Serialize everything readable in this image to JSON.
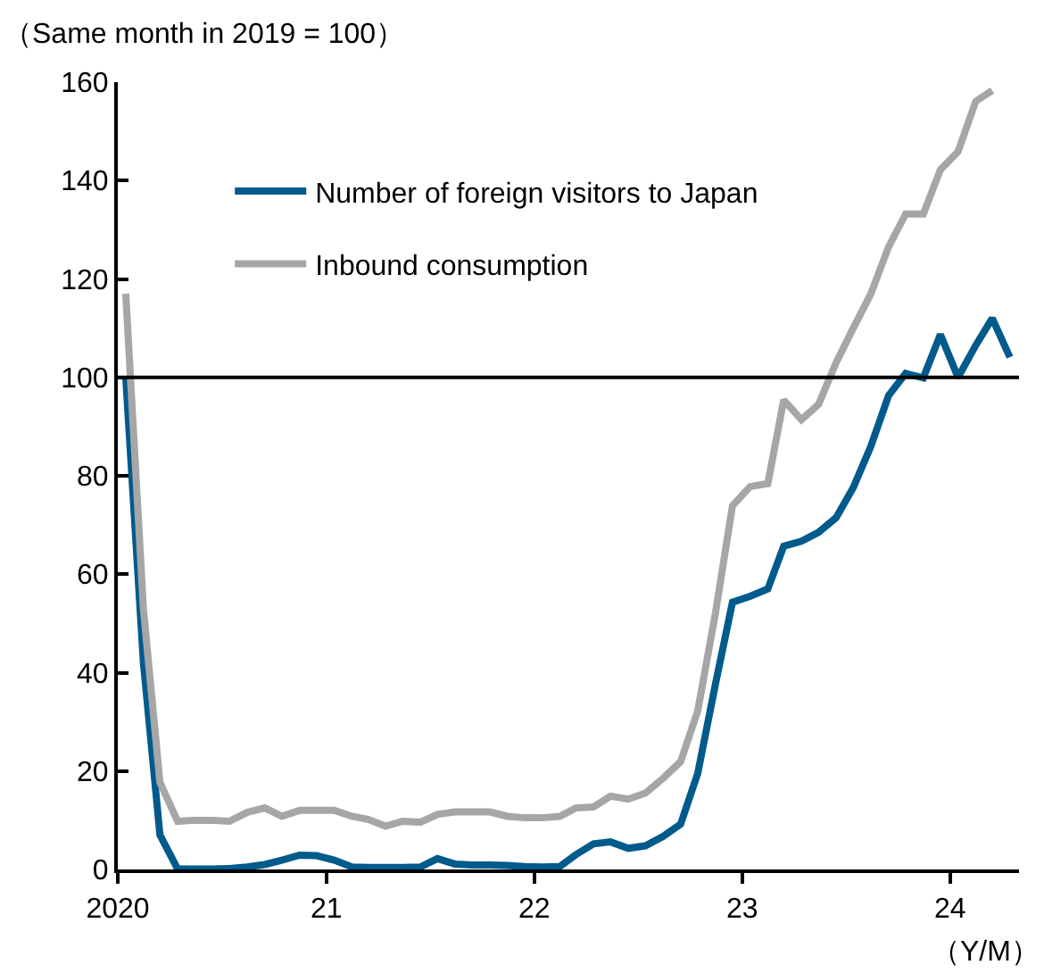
{
  "chart_data": {
    "type": "line",
    "xlabel": "（Y/M）",
    "ylabel": "（Same month in 2019 = 100）",
    "x": [
      "2020-01-15",
      "2020-02-15",
      "2020-03-15",
      "2020-04-15",
      "2020-05-15",
      "2020-06-15",
      "2020-07-15",
      "2020-08-15",
      "2020-09-15",
      "2020-10-15",
      "2020-11-15",
      "2020-12-15",
      "2021-01-15",
      "2021-02-15",
      "2021-03-15",
      "2021-04-15",
      "2021-05-15",
      "2021-06-15",
      "2021-07-15",
      "2021-08-15",
      "2021-09-15",
      "2021-10-15",
      "2021-11-15",
      "2021-12-15",
      "2022-01-15",
      "2022-02-15",
      "2022-03-15",
      "2022-04-15",
      "2022-05-15",
      "2022-06-15",
      "2022-07-15",
      "2022-08-15",
      "2022-09-15",
      "2022-10-15",
      "2022-11-15",
      "2022-12-15",
      "2023-01-15",
      "2023-02-15",
      "2023-03-15",
      "2023-04-15",
      "2023-05-15",
      "2023-06-15",
      "2023-07-15",
      "2023-08-15",
      "2023-09-15",
      "2023-10-15",
      "2023-11-15",
      "2023-12-15",
      "2024-01-15",
      "2024-02-15",
      "2024-03-15",
      "2024-04-15"
    ],
    "series": [
      {
        "name": "Number of foreign visitors to Japan",
        "color": "#005a8c",
        "values": [
          100,
          42,
          7,
          0.1,
          0.1,
          0.1,
          0.2,
          0.5,
          1.0,
          1.9,
          2.9,
          2.8,
          1.9,
          0.5,
          0.4,
          0.4,
          0.4,
          0.5,
          2.2,
          1.1,
          0.9,
          0.9,
          0.8,
          0.6,
          0.5,
          0.6,
          3.0,
          5.2,
          5.6,
          4.3,
          4.8,
          6.7,
          9.2,
          19.5,
          37.6,
          54.3,
          55.5,
          57,
          65.7,
          66.7,
          68.5,
          71.5,
          77.6,
          86,
          96.3,
          100.8,
          99.9,
          108.7,
          100,
          106.5,
          112,
          104.1
        ]
      },
      {
        "name": "Inbound consumption",
        "color": "#a6a6a6",
        "values": [
          117,
          53,
          17.7,
          9.8,
          10.0,
          10.0,
          9.8,
          11.6,
          12.5,
          10.8,
          12.0,
          12.0,
          12.0,
          10.8,
          10.2,
          8.8,
          9.8,
          9.6,
          11.2,
          11.7,
          11.7,
          11.7,
          10.8,
          10.5,
          10.5,
          10.8,
          12.5,
          12.7,
          14.9,
          14.3,
          15.5,
          18.5,
          21.9,
          32.2,
          52,
          73.9,
          77.8,
          78.4,
          95.4,
          91.4,
          94.5,
          103,
          110,
          117,
          126.5,
          133.2,
          133.2,
          142.2,
          145.9,
          156.1,
          158.3,
          null
        ]
      }
    ],
    "xlim": [
      "2020-01-01",
      "2024-05-01"
    ],
    "xticks": [
      {
        "value": "2020-01-01",
        "label": "2020"
      },
      {
        "value": "2021-01-01",
        "label": "21"
      },
      {
        "value": "2022-01-01",
        "label": "22"
      },
      {
        "value": "2023-01-01",
        "label": "23"
      },
      {
        "value": "2024-01-01",
        "label": "24"
      }
    ],
    "ylim": [
      0,
      160
    ],
    "yticks": [
      0,
      20,
      40,
      60,
      80,
      100,
      120,
      140,
      160
    ],
    "ref_lines": [
      {
        "axis": "y",
        "value": 100,
        "color": "#000000"
      }
    ],
    "legend": "top left"
  }
}
